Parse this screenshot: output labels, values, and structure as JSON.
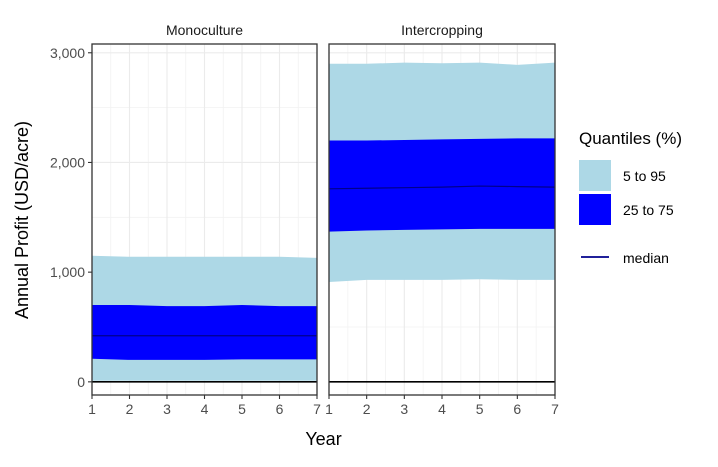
{
  "chart_data": {
    "type": "area",
    "xlabel": "Year",
    "ylabel": "Annual Profit (USD/acre)",
    "xlim": [
      1,
      7
    ],
    "ylim": [
      -120,
      3080
    ],
    "x_ticks": [
      "1",
      "2",
      "3",
      "4",
      "5",
      "6",
      "7"
    ],
    "y_ticks": [
      {
        "value": 0,
        "label": "0"
      },
      {
        "value": 1000,
        "label": "1,000"
      },
      {
        "value": 2000,
        "label": "2,000"
      },
      {
        "value": 3000,
        "label": "3,000"
      }
    ],
    "grid": true,
    "reference_line": 0,
    "legend": {
      "title": "Quantiles (%)",
      "placement": "right",
      "items": [
        {
          "label": "5 to 95",
          "kind": "band",
          "color": "#add8e6"
        },
        {
          "label": "25 to 75",
          "kind": "band",
          "color": "#0000ff"
        },
        {
          "label": "median",
          "kind": "line",
          "color": "#00008b"
        }
      ]
    },
    "panels": [
      {
        "title": "Monoculture",
        "x": [
          1,
          2,
          3,
          4,
          5,
          6,
          7
        ],
        "q05": [
          10,
          10,
          10,
          10,
          10,
          10,
          10
        ],
        "q25": [
          210,
          200,
          200,
          200,
          205,
          205,
          205
        ],
        "median": [
          420,
          420,
          420,
          420,
          420,
          420,
          420
        ],
        "q75": [
          700,
          700,
          690,
          690,
          700,
          690,
          690
        ],
        "q95": [
          1150,
          1140,
          1140,
          1140,
          1140,
          1140,
          1130
        ]
      },
      {
        "title": "Intercropping",
        "x": [
          1,
          2,
          3,
          4,
          5,
          6,
          7
        ],
        "q05": [
          910,
          930,
          930,
          930,
          935,
          930,
          930
        ],
        "q25": [
          1370,
          1380,
          1385,
          1390,
          1395,
          1395,
          1395
        ],
        "median": [
          1760,
          1765,
          1770,
          1775,
          1785,
          1780,
          1775
        ],
        "q75": [
          2200,
          2200,
          2205,
          2210,
          2215,
          2220,
          2220
        ],
        "q95": [
          2900,
          2900,
          2910,
          2905,
          2910,
          2890,
          2910
        ]
      }
    ]
  }
}
